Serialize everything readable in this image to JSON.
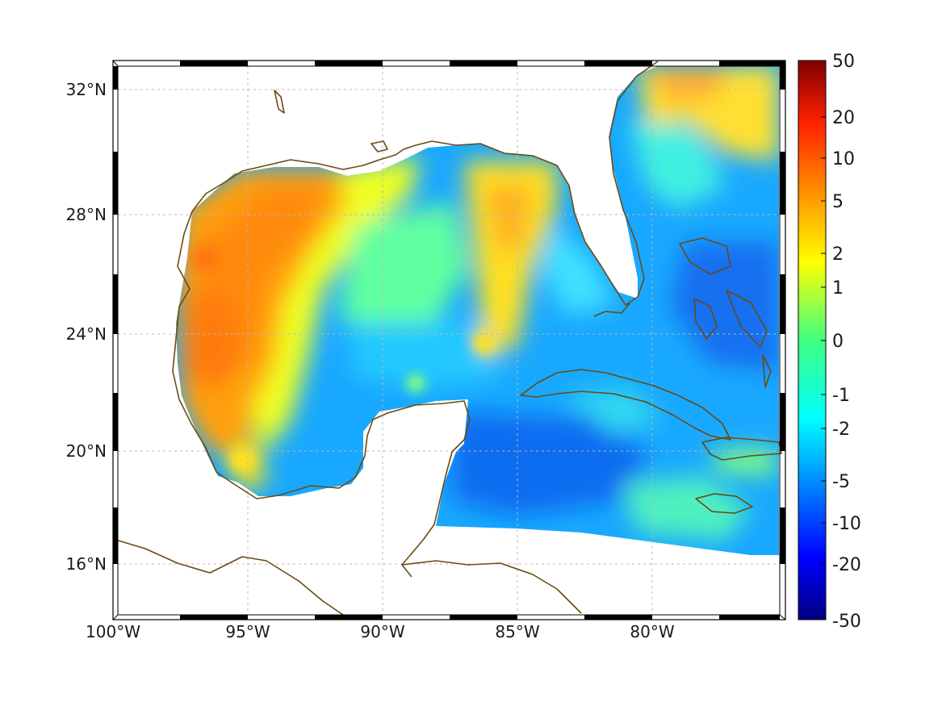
{
  "map": {
    "lat_ticks": [
      "32°N",
      "28°N",
      "24°N",
      "20°N",
      "16°N"
    ],
    "lon_ticks": [
      "100°W",
      "95°W",
      "90°W",
      "85°W",
      "80°W"
    ],
    "extent": {
      "lon_min": -100,
      "lon_max": -75,
      "lat_min": 14.5,
      "lat_max": 33
    },
    "grid": "dotted",
    "coastline_color": "#6b4a12",
    "frame_style": "black-and-white alternating"
  },
  "colorbar": {
    "labels": [
      "50",
      "20",
      "10",
      "5",
      "2",
      "1",
      "0",
      "-1",
      "-2",
      "-5",
      "-10",
      "-20",
      "-50"
    ],
    "colormap": "jet",
    "colors": [
      "#800000",
      "#ff0000",
      "#ff8000",
      "#ffff00",
      "#80ff80",
      "#00ffff",
      "#0080ff",
      "#0000ff",
      "#000080"
    ]
  }
}
